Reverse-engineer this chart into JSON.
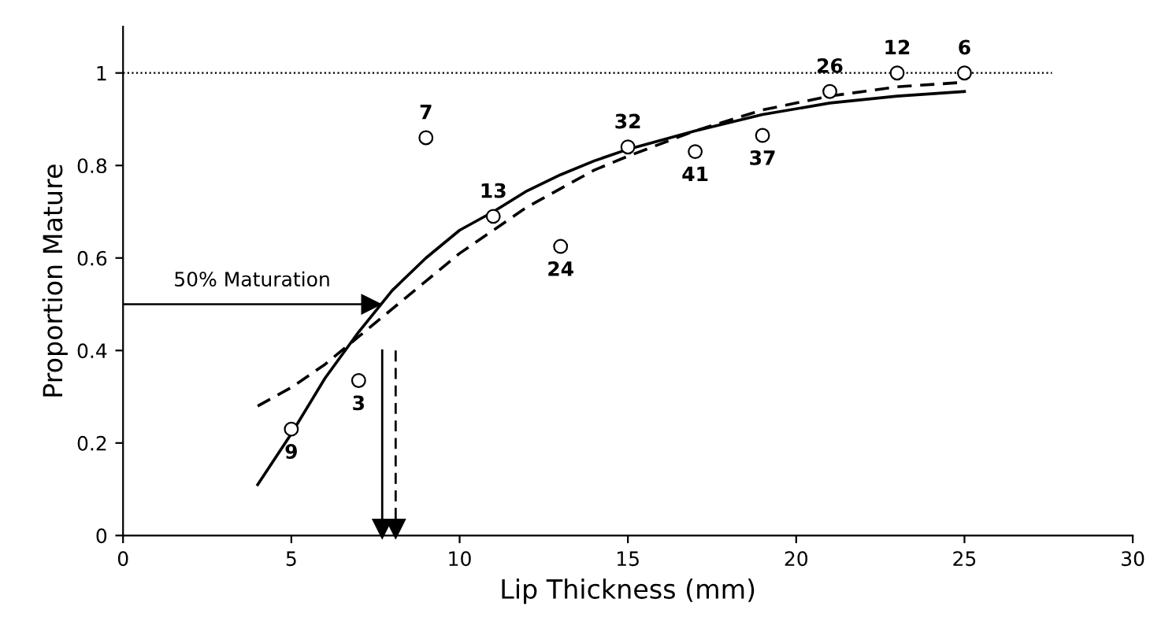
{
  "chart_data": {
    "type": "scatter",
    "xlabel": "Lip Thickness (mm)",
    "ylabel": "Proportion Mature",
    "x": [
      5,
      7,
      9,
      11,
      13,
      15,
      17,
      19,
      21,
      23,
      25
    ],
    "series": [
      {
        "color": "#000000",
        "marker": "circle",
        "values": [
          0.23,
          0.335,
          0.86,
          0.69,
          0.625,
          0.84,
          0.83,
          0.865,
          0.96,
          1.0,
          1.0
        ]
      },
      {
        "type": "line",
        "color": "#000000",
        "line_style": "solid",
        "x": [
          4,
          5,
          6,
          7,
          8,
          9,
          10,
          11,
          12,
          13,
          14,
          15,
          17,
          19,
          21,
          23,
          25
        ],
        "values": [
          0.11,
          0.22,
          0.34,
          0.44,
          0.53,
          0.6,
          0.66,
          0.7,
          0.745,
          0.78,
          0.81,
          0.835,
          0.875,
          0.91,
          0.935,
          0.95,
          0.96
        ]
      },
      {
        "type": "line",
        "color": "#000000",
        "line_style": "dashed",
        "x": [
          4,
          5,
          6,
          7,
          8,
          9,
          10,
          11,
          12,
          13,
          14,
          15,
          17,
          19,
          21,
          23,
          25
        ],
        "values": [
          0.28,
          0.32,
          0.37,
          0.43,
          0.49,
          0.55,
          0.61,
          0.66,
          0.71,
          0.75,
          0.79,
          0.82,
          0.875,
          0.92,
          0.95,
          0.97,
          0.98
        ]
      }
    ],
    "ref_lines": [
      {
        "axis": "y",
        "value": 1,
        "line_style": "dotted",
        "color": "#000000"
      },
      {
        "axis": "y",
        "value": 0.5,
        "label": "50% Maturation",
        "color": "#000000"
      },
      {
        "axis": "x",
        "value": 7.7,
        "line_style": "solid",
        "color": "#000000"
      },
      {
        "axis": "x",
        "value": 8.1,
        "line_style": "dashed",
        "color": "#000000"
      }
    ],
    "annotations": [
      {
        "text": "9",
        "x": 5,
        "y": 0.23
      },
      {
        "text": "3",
        "x": 7,
        "y": 0.335
      },
      {
        "text": "7",
        "x": 9,
        "y": 0.86
      },
      {
        "text": "13",
        "x": 11,
        "y": 0.69
      },
      {
        "text": "24",
        "x": 13,
        "y": 0.625
      },
      {
        "text": "32",
        "x": 15,
        "y": 0.84
      },
      {
        "text": "41",
        "x": 17,
        "y": 0.83
      },
      {
        "text": "37",
        "x": 19,
        "y": 0.865
      },
      {
        "text": "26",
        "x": 21,
        "y": 0.96
      },
      {
        "text": "12",
        "x": 23,
        "y": 1.0
      },
      {
        "text": "6",
        "x": 25,
        "y": 1.0
      }
    ],
    "xlim": [
      0,
      30
    ],
    "xticks": [
      0,
      5,
      10,
      15,
      20,
      25,
      30
    ],
    "ylim": [
      0,
      1.1
    ],
    "yticks": [
      0,
      0.2,
      0.4,
      0.6,
      0.8,
      1
    ],
    "grid": false
  }
}
